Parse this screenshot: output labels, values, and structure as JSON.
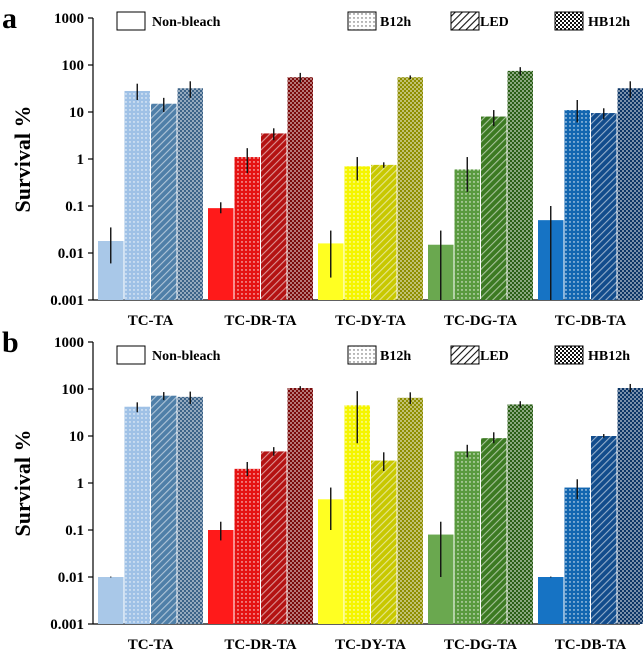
{
  "chart_data": [
    {
      "panel": "a",
      "type": "bar",
      "scale": "log",
      "ylabel": "Survival %",
      "ylim": [
        0.001,
        1000
      ],
      "yticks": [
        "0.001",
        "0.01",
        "0.1",
        "1",
        "10",
        "100",
        "1000"
      ],
      "categories": [
        "TC-TA",
        "TC-DR-TA",
        "TC-DY-TA",
        "TC-DG-TA",
        "TC-DB-TA"
      ],
      "legend": [
        "Non-bleach",
        "B12h",
        "LED",
        "HB12h"
      ],
      "series": [
        {
          "name": "Non-bleach",
          "values": [
            0.018,
            0.09,
            0.016,
            0.015,
            0.05
          ],
          "err": [
            [
              0.006,
              0.035
            ],
            [
              0.07,
              0.12
            ],
            [
              0.003,
              0.03
            ],
            [
              0.001,
              0.03
            ],
            [
              0.001,
              0.1
            ]
          ]
        },
        {
          "name": "B12h",
          "values": [
            28,
            1.1,
            0.7,
            0.6,
            11
          ],
          "err": [
            [
              18,
              40
            ],
            [
              0.5,
              1.7
            ],
            [
              0.35,
              1.1
            ],
            [
              0.2,
              1.1
            ],
            [
              6,
              18
            ]
          ]
        },
        {
          "name": "LED",
          "values": [
            15,
            3.5,
            0.75,
            8,
            9.5
          ],
          "err": [
            [
              10,
              20
            ],
            [
              2.5,
              4.5
            ],
            [
              0.65,
              0.85
            ],
            [
              5,
              11
            ],
            [
              7,
              12
            ]
          ]
        },
        {
          "name": "HB12h",
          "values": [
            32,
            55,
            55,
            75,
            32
          ],
          "err": [
            [
              20,
              45
            ],
            [
              42,
              68
            ],
            [
              50,
              60
            ],
            [
              60,
              90
            ],
            [
              20,
              45
            ]
          ]
        }
      ]
    },
    {
      "panel": "b",
      "type": "bar",
      "scale": "log",
      "ylabel": "Survival %",
      "ylim": [
        0.001,
        1000
      ],
      "yticks": [
        "0.001",
        "0.01",
        "0.1",
        "1",
        "10",
        "100",
        "1000"
      ],
      "categories": [
        "TC-TA",
        "TC-DR-TA",
        "TC-DY-TA",
        "TC-DG-TA",
        "TC-DB-TA"
      ],
      "legend": [
        "Non-bleach",
        "B12h",
        "LED",
        "HB12h"
      ],
      "series": [
        {
          "name": "Non-bleach",
          "values": [
            0.01,
            0.1,
            0.45,
            0.08,
            0.01
          ],
          "err": [
            [
              0.0098,
              0.0102
            ],
            [
              0.06,
              0.15
            ],
            [
              0.1,
              0.8
            ],
            [
              0.01,
              0.15
            ],
            [
              0.0098,
              0.0102
            ]
          ]
        },
        {
          "name": "B12h",
          "values": [
            42,
            2.0,
            45,
            4.7,
            0.8
          ],
          "err": [
            [
              32,
              52
            ],
            [
              1.4,
              2.8
            ],
            [
              7,
              90
            ],
            [
              3.5,
              6.5
            ],
            [
              0.45,
              1.2
            ]
          ]
        },
        {
          "name": "LED",
          "values": [
            72,
            4.7,
            3.0,
            9,
            10
          ],
          "err": [
            [
              58,
              86
            ],
            [
              3.8,
              5.8
            ],
            [
              1.8,
              4.5
            ],
            [
              7,
              12
            ],
            [
              9.2,
              11
            ]
          ]
        },
        {
          "name": "HB12h",
          "values": [
            68,
            105,
            65,
            47,
            105
          ],
          "err": [
            [
              48,
              88
            ],
            [
              95,
              115
            ],
            [
              48,
              85
            ],
            [
              40,
              55
            ],
            [
              85,
              128
            ]
          ]
        }
      ]
    }
  ],
  "group_colors": [
    "#a9c8e8",
    "#ff1a1a",
    "#ffff22",
    "#6aa84f",
    "#1673c4"
  ],
  "panel_colors": {
    "a": [
      [
        "#a9c8e8",
        "#9fc1e6",
        "#4f7fa8",
        "#3c6388"
      ],
      [
        "#ff1a1a",
        "#e51212",
        "#b41212",
        "#7a0a0a"
      ],
      [
        "#ffff22",
        "#f5f500",
        "#c8c800",
        "#8e8e00"
      ],
      [
        "#6aa84f",
        "#5a9a3f",
        "#3c7a22",
        "#2a5e16"
      ],
      [
        "#1673c4",
        "#1266b0",
        "#124c8c",
        "#0c3566"
      ]
    ],
    "b": [
      [
        "#a9c8e8",
        "#9fc1e6",
        "#4f7fa8",
        "#3c6388"
      ],
      [
        "#ff1a1a",
        "#e51212",
        "#b41212",
        "#7a0a0a"
      ],
      [
        "#ffff22",
        "#f5f500",
        "#c8c800",
        "#8e8e00"
      ],
      [
        "#6aa84f",
        "#5a9a3f",
        "#3c7a22",
        "#2a5e16"
      ],
      [
        "#1673c4",
        "#1266b0",
        "#124c8c",
        "#0c3566"
      ]
    ]
  }
}
